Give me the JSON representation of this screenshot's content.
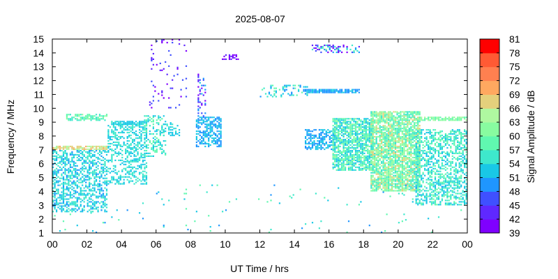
{
  "chart_data": {
    "type": "heatmap",
    "title": "2025-08-07",
    "xlabel": "UT Time / hrs",
    "ylabel": "Frequency / MHz",
    "colorbar_label": "Signal Amplitude / dB",
    "xlim": [
      0,
      24
    ],
    "ylim": [
      1,
      15
    ],
    "x_tick_labels": [
      "00",
      "02",
      "04",
      "06",
      "08",
      "10",
      "12",
      "14",
      "16",
      "18",
      "20",
      "22",
      "00"
    ],
    "y_tick_labels": [
      "1",
      "2",
      "3",
      "4",
      "5",
      "6",
      "7",
      "8",
      "9",
      "10",
      "11",
      "12",
      "13",
      "14",
      "15"
    ],
    "colorbar": {
      "min": 39,
      "max": 81,
      "step": 3,
      "tick_labels": [
        "39",
        "42",
        "45",
        "48",
        "51",
        "54",
        "57",
        "60",
        "63",
        "66",
        "69",
        "72",
        "75",
        "78",
        "81"
      ],
      "colors": [
        "#7f00ff",
        "#5f28ff",
        "#3f50ff",
        "#1f96ff",
        "#19c8e6",
        "#3ee8cc",
        "#60f8b0",
        "#88fca0",
        "#aff8a0",
        "#e4d07c",
        "#ffa860",
        "#ff8050",
        "#ff5a34",
        "#ff0000"
      ]
    },
    "grid": false,
    "regions": [
      {
        "t0": 0.0,
        "t1": 3.2,
        "f0": 2.5,
        "f1": 7.0,
        "amp0": 50,
        "amp1": 57,
        "density": 0.5
      },
      {
        "t0": 0.0,
        "t1": 3.3,
        "f0": 7.0,
        "f1": 7.3,
        "amp0": 63,
        "amp1": 70,
        "density": 0.8
      },
      {
        "t0": 0.8,
        "t1": 3.2,
        "f0": 9.1,
        "f1": 9.6,
        "amp0": 54,
        "amp1": 62,
        "density": 0.65
      },
      {
        "t0": 3.2,
        "t1": 5.5,
        "f0": 4.5,
        "f1": 8.9,
        "amp0": 51,
        "amp1": 57,
        "density": 0.45
      },
      {
        "t0": 3.4,
        "t1": 5.6,
        "f0": 8.8,
        "f1": 9.1,
        "amp0": 51,
        "amp1": 55,
        "density": 0.75
      },
      {
        "t0": 5.3,
        "t1": 6.6,
        "f0": 6.5,
        "f1": 9.5,
        "amp0": 51,
        "amp1": 60,
        "density": 0.3
      },
      {
        "t0": 6.3,
        "t1": 7.4,
        "f0": 8.0,
        "f1": 9.0,
        "amp0": 51,
        "amp1": 55,
        "density": 0.3
      },
      {
        "t0": 5.6,
        "t1": 7.8,
        "f0": 10.0,
        "f1": 15.0,
        "amp0": 39,
        "amp1": 48,
        "density": 0.07
      },
      {
        "t0": 8.3,
        "t1": 9.8,
        "f0": 7.2,
        "f1": 9.4,
        "amp0": 48,
        "amp1": 54,
        "density": 0.6
      },
      {
        "t0": 8.4,
        "t1": 8.9,
        "f0": 9.4,
        "f1": 12.5,
        "amp0": 40,
        "amp1": 52,
        "density": 0.25
      },
      {
        "t0": 9.8,
        "t1": 10.9,
        "f0": 13.5,
        "f1": 13.9,
        "amp0": 39,
        "amp1": 44,
        "density": 0.5
      },
      {
        "t0": 12.0,
        "t1": 14.8,
        "f0": 10.8,
        "f1": 11.7,
        "amp0": 48,
        "amp1": 60,
        "density": 0.25
      },
      {
        "t0": 14.5,
        "t1": 17.8,
        "f0": 11.1,
        "f1": 11.4,
        "amp0": 48,
        "amp1": 52,
        "density": 0.85
      },
      {
        "t0": 15.0,
        "t1": 17.8,
        "f0": 14.0,
        "f1": 14.6,
        "amp0": 39,
        "amp1": 62,
        "density": 0.4
      },
      {
        "t0": 14.6,
        "t1": 16.4,
        "f0": 7.0,
        "f1": 8.5,
        "amp0": 48,
        "amp1": 54,
        "density": 0.55
      },
      {
        "t0": 16.2,
        "t1": 18.6,
        "f0": 5.5,
        "f1": 9.3,
        "amp0": 51,
        "amp1": 62,
        "density": 0.75
      },
      {
        "t0": 18.4,
        "t1": 21.3,
        "f0": 4.0,
        "f1": 9.8,
        "amp0": 54,
        "amp1": 68,
        "density": 0.8
      },
      {
        "t0": 21.0,
        "t1": 24.0,
        "f0": 3.0,
        "f1": 8.5,
        "amp0": 51,
        "amp1": 60,
        "density": 0.5
      },
      {
        "t0": 21.0,
        "t1": 24.0,
        "f0": 9.1,
        "f1": 9.4,
        "amp0": 57,
        "amp1": 64,
        "density": 0.7
      },
      {
        "t0": 0.0,
        "t1": 24.0,
        "f0": 1.0,
        "f1": 4.5,
        "amp0": 48,
        "amp1": 60,
        "density": 0.012
      }
    ]
  }
}
